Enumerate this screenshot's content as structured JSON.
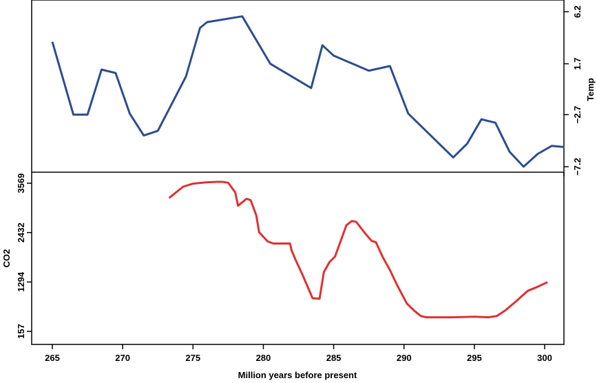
{
  "chart_data": [
    {
      "type": "line",
      "panel": "top",
      "title": "",
      "xlabel": "Million years before present",
      "ylabel": "Temp",
      "y_axis_side": "right",
      "yticks": [
        6.2,
        1.7,
        -2.7,
        -7.2
      ],
      "ytick_labels": [
        "6.2",
        "1.7",
        "−2.7",
        "−7.2"
      ],
      "ylim": [
        -7.2,
        6.2
      ],
      "xlim": [
        263.9,
        301.4
      ],
      "grid": false,
      "series": [
        {
          "name": "Temp",
          "color": "#2b4d8f",
          "x": [
            265.0,
            266.5,
            267.5,
            268.5,
            269.5,
            270.5,
            271.5,
            272.5,
            274.5,
            275.5,
            276.0,
            278.5,
            280.5,
            283.4,
            284.2,
            285.0,
            287.5,
            289.0,
            290.3,
            293.5,
            294.5,
            295.5,
            296.5,
            297.5,
            298.5,
            299.5,
            300.5,
            301.4
          ],
          "values": [
            3.6,
            -2.7,
            -2.7,
            1.2,
            0.9,
            -2.6,
            -4.5,
            -4.1,
            0.6,
            4.8,
            5.3,
            5.8,
            1.7,
            -0.4,
            3.3,
            2.4,
            1.1,
            1.5,
            -2.6,
            -6.4,
            -5.2,
            -3.1,
            -3.4,
            -5.9,
            -7.2,
            -6.1,
            -5.4,
            -5.5
          ]
        }
      ]
    },
    {
      "type": "line",
      "panel": "bottom",
      "title": "",
      "xlabel": "Million years before present",
      "ylabel": "CO2",
      "y_axis_side": "left",
      "yticks": [
        157,
        1294,
        2432,
        3569
      ],
      "ytick_labels": [
        "157",
        "1294",
        "2432",
        "3569"
      ],
      "xticks": [
        265,
        270,
        275,
        280,
        285,
        290,
        295,
        300
      ],
      "xtick_labels": [
        "265",
        "270",
        "275",
        "280",
        "285",
        "290",
        "295",
        "300"
      ],
      "xlim": [
        263.9,
        301.4
      ],
      "grid": false,
      "series": [
        {
          "name": "CO2",
          "color": "#e03030",
          "x": [
            273.3,
            274.3,
            275.0,
            275.9,
            276.7,
            277.1,
            277.5,
            278.0,
            278.2,
            278.8,
            279.1,
            279.5,
            279.7,
            280.3,
            280.7,
            281.9,
            282.0,
            282.3,
            282.8,
            283.5,
            284.0,
            284.3,
            284.7,
            285.1,
            285.5,
            285.9,
            286.3,
            286.6,
            287.2,
            287.7,
            288.0,
            288.5,
            289.0,
            289.5,
            290.2,
            290.7,
            291.2,
            291.6,
            293.5,
            295.0,
            296.0,
            296.6,
            297.2,
            297.9,
            298.8,
            299.4,
            300.2
          ],
          "values": [
            3230,
            3490,
            3560,
            3590,
            3600,
            3600,
            3580,
            3360,
            3050,
            3210,
            3180,
            2830,
            2440,
            2230,
            2180,
            2180,
            2030,
            1800,
            1450,
            920,
            910,
            1520,
            1750,
            1880,
            2240,
            2600,
            2700,
            2680,
            2430,
            2240,
            2210,
            1860,
            1570,
            1230,
            800,
            640,
            510,
            480,
            480,
            495,
            480,
            510,
            640,
            830,
            1090,
            1170,
            1290
          ]
        }
      ]
    }
  ],
  "labels": {
    "xlabel": "Million years before present",
    "top_ylabel": "Temp",
    "bottom_ylabel": "CO2"
  },
  "colors": {
    "temp_line": "#2b4d8f",
    "co2_line": "#e03030",
    "axis": "#000000"
  }
}
